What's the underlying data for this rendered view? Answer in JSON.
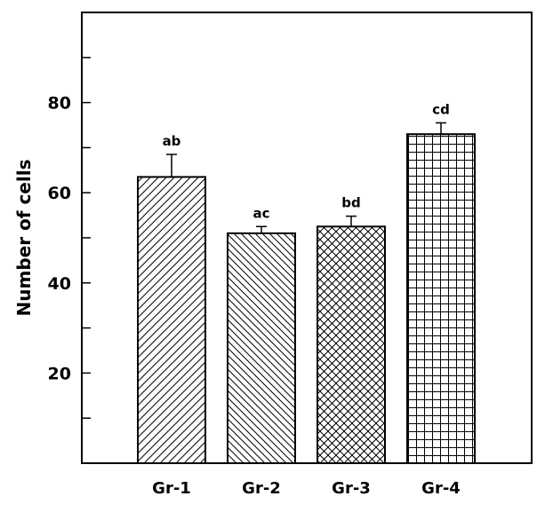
{
  "chart_data": {
    "type": "bar",
    "title": "",
    "xlabel": "",
    "ylabel": "Number of cells",
    "ylim": [
      0,
      100
    ],
    "yticks_labeled": [
      20,
      40,
      60,
      80
    ],
    "yticks_minor": [
      10,
      30,
      50,
      70,
      90
    ],
    "grid": false,
    "legend": "none",
    "categories": [
      "Gr-1",
      "Gr-2",
      "Gr-3",
      "Gr-4"
    ],
    "values": [
      63.5,
      51,
      52.5,
      73
    ],
    "errors": [
      5.0,
      1.5,
      2.3,
      2.5
    ],
    "annotations": [
      "ab",
      "ac",
      "bd",
      "cd"
    ],
    "patterns": [
      "diagonal-forward",
      "diagonal-back",
      "crosshatch-diagonal",
      "grid-square"
    ],
    "colors": {
      "bar_fill": "#ffffff",
      "stroke": "#000000"
    }
  }
}
